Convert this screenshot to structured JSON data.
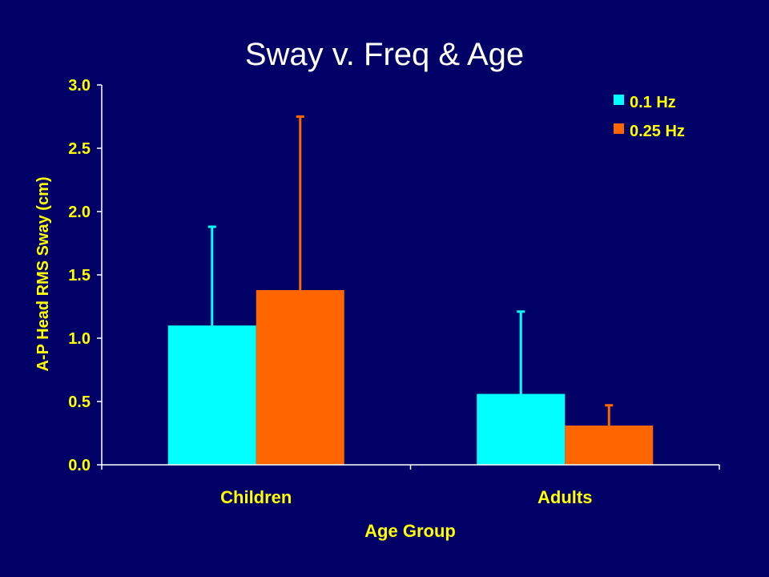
{
  "slide": {
    "title": "Sway v. Freq & Age"
  },
  "colors": {
    "background": "#000066",
    "text": "#ffff00",
    "axis": "#ffffff",
    "series_0_1hz": "#00ffff",
    "series_0_25hz": "#ff6600"
  },
  "chart_data": {
    "type": "bar",
    "title": "Sway v. Freq & Age",
    "xlabel": "Age Group",
    "ylabel": "A-P Head RMS Sway (cm)",
    "categories": [
      "Children",
      "Adults"
    ],
    "ylim": [
      0,
      3.0
    ],
    "yticks": [
      "0.0",
      "0.5",
      "1.0",
      "1.5",
      "2.0",
      "2.5",
      "3.0"
    ],
    "grid": false,
    "legend_position": "top-right",
    "series": [
      {
        "name": "0.1 Hz",
        "color": "#00ffff",
        "values": [
          1.1,
          0.56
        ],
        "error_upper": [
          1.88,
          1.21
        ]
      },
      {
        "name": "0.25 Hz",
        "color": "#ff6600",
        "values": [
          1.38,
          0.31
        ],
        "error_upper": [
          2.75,
          0.47
        ]
      }
    ]
  }
}
